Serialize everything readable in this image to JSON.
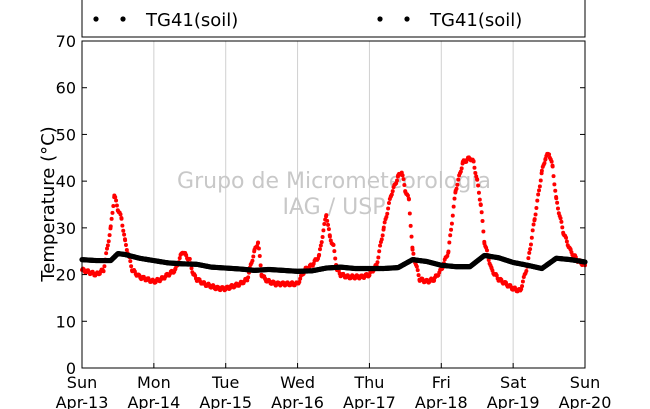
{
  "chart_data": {
    "type": "line",
    "ylabel": "Temperature (°C)",
    "ylim": [
      0,
      70
    ],
    "yticks": [
      0,
      10,
      20,
      30,
      40,
      50,
      60,
      70
    ],
    "xlim": [
      0,
      7
    ],
    "x_tick_labels": [
      {
        "day": "Sun",
        "date": "Apr-13"
      },
      {
        "day": "Mon",
        "date": "Apr-14"
      },
      {
        "day": "Tue",
        "date": "Apr-15"
      },
      {
        "day": "Wed",
        "date": "Apr-16"
      },
      {
        "day": "Thu",
        "date": "Apr-17"
      },
      {
        "day": "Fri",
        "date": "Apr-18"
      },
      {
        "day": "Sat",
        "date": "Apr-19"
      },
      {
        "day": "Sun",
        "date": "Apr-20"
      }
    ],
    "grid": "vertical",
    "legend_position": "top",
    "watermark": [
      "Grupo de Micrometeorologia",
      "IAG / USP"
    ],
    "series": [
      {
        "name": "TG41(soil)",
        "color": "#ff0000",
        "marker": "dot",
        "x": [
          0.0,
          0.1,
          0.2,
          0.3,
          0.4,
          0.45,
          0.5,
          0.55,
          0.6,
          0.7,
          0.8,
          0.9,
          1.0,
          1.1,
          1.2,
          1.3,
          1.4,
          1.45,
          1.5,
          1.55,
          1.6,
          1.7,
          1.8,
          1.9,
          2.0,
          2.1,
          2.2,
          2.3,
          2.4,
          2.45,
          2.5,
          2.55,
          2.6,
          2.7,
          2.8,
          2.9,
          3.0,
          3.1,
          3.2,
          3.3,
          3.4,
          3.45,
          3.5,
          3.55,
          3.6,
          3.7,
          3.8,
          3.9,
          4.0,
          4.1,
          4.2,
          4.3,
          4.4,
          4.45,
          4.5,
          4.55,
          4.6,
          4.7,
          4.8,
          4.9,
          5.0,
          5.1,
          5.2,
          5.3,
          5.4,
          5.45,
          5.5,
          5.55,
          5.6,
          5.7,
          5.8,
          5.9,
          6.0,
          6.1,
          6.2,
          6.3,
          6.4,
          6.45,
          6.5,
          6.55,
          6.6,
          6.7,
          6.8,
          6.9,
          7.0
        ],
        "values": [
          21,
          20.5,
          20,
          21,
          30,
          37,
          34,
          32,
          27,
          21,
          19.5,
          19,
          18.5,
          19,
          20,
          21,
          25,
          24,
          23,
          20,
          19,
          18,
          17.5,
          17,
          17,
          17.5,
          18,
          19,
          25,
          27,
          20,
          19,
          18.5,
          18,
          18,
          18,
          18,
          21,
          22,
          24,
          33,
          28,
          26,
          21,
          20,
          19.5,
          19.5,
          19.5,
          20,
          22,
          30,
          37,
          41,
          42,
          38,
          36,
          25,
          19,
          18.5,
          19,
          21,
          25,
          38,
          44,
          45,
          44,
          40,
          35,
          27,
          21,
          19,
          18,
          17,
          16.5,
          22,
          32,
          42,
          45,
          46,
          43,
          36,
          29,
          25,
          23,
          22
        ]
      },
      {
        "name": "TG41(soil)",
        "color": "#000000",
        "marker": "dot",
        "x": [
          0.0,
          0.2,
          0.4,
          0.5,
          0.6,
          0.8,
          1.0,
          1.2,
          1.4,
          1.6,
          1.8,
          2.0,
          2.2,
          2.4,
          2.6,
          2.8,
          3.0,
          3.2,
          3.4,
          3.6,
          3.8,
          4.0,
          4.2,
          4.4,
          4.6,
          4.8,
          5.0,
          5.2,
          5.4,
          5.6,
          5.8,
          6.0,
          6.2,
          6.4,
          6.6,
          6.8,
          7.0
        ],
        "values": [
          23.2,
          23,
          23,
          24.5,
          24.3,
          23.5,
          23,
          22.5,
          22.3,
          22.2,
          21.6,
          21.4,
          21.2,
          20.9,
          21.1,
          20.9,
          20.7,
          20.8,
          21.4,
          21.6,
          21.3,
          21.3,
          21.3,
          21.5,
          23.2,
          22.8,
          22,
          21.7,
          21.7,
          24.1,
          23.6,
          22.6,
          22,
          21.3,
          23.5,
          23.2,
          22.7
        ]
      }
    ]
  }
}
